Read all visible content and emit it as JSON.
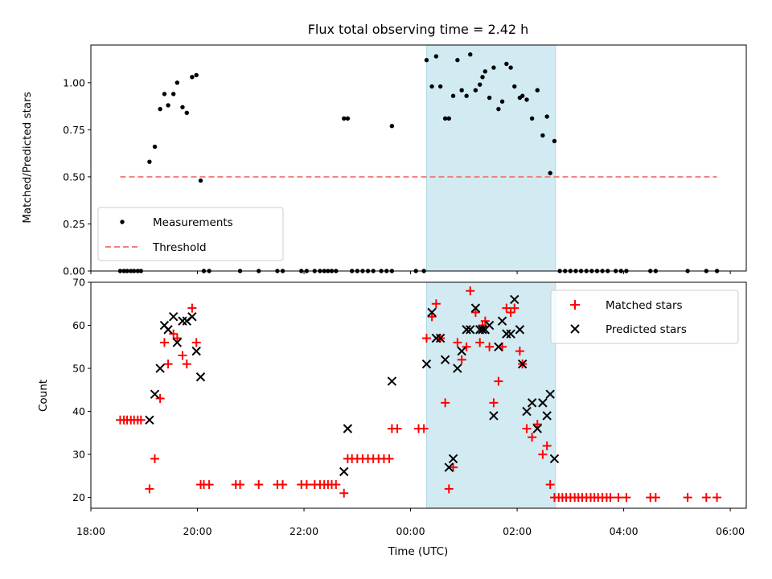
{
  "chart_data": {
    "type": "scatter",
    "title": "Flux total observing time = 2.42 h",
    "xlabel": "Time (UTC)",
    "colors": {
      "measurement": "#000000",
      "threshold": "#f08080",
      "matched": "#ff0000",
      "predicted": "#000000",
      "highlight": "#add8e6"
    },
    "x_axis": {
      "range_hours": [
        18.0,
        30.3
      ],
      "ticks": [
        18,
        20,
        22,
        24,
        26,
        28,
        30
      ],
      "tick_labels": [
        "18:00",
        "20:00",
        "22:00",
        "00:00",
        "02:00",
        "04:00",
        "06:00"
      ]
    },
    "highlight_span_hours": [
      24.3,
      26.72
    ],
    "panels": [
      {
        "ylabel": "Matched/Predicted stars",
        "ylim": [
          0,
          1.2
        ],
        "yticks": [
          0.0,
          0.25,
          0.5,
          0.75,
          1.0
        ],
        "ytick_labels": [
          "0.00",
          "0.25",
          "0.50",
          "0.75",
          "1.00"
        ],
        "legend": {
          "position": "lower-left",
          "entries": [
            "Measurements",
            "Threshold"
          ]
        },
        "threshold": {
          "name": "Threshold",
          "y": 0.5,
          "x_range_hours": [
            18.55,
            29.75
          ]
        },
        "measurements": {
          "name": "Measurements",
          "points": [
            [
              18.55,
              0
            ],
            [
              18.62,
              0
            ],
            [
              18.68,
              0
            ],
            [
              18.75,
              0
            ],
            [
              18.81,
              0
            ],
            [
              18.88,
              0
            ],
            [
              18.94,
              0
            ],
            [
              19.1,
              0.58
            ],
            [
              19.2,
              0.66
            ],
            [
              19.3,
              0.86
            ],
            [
              19.38,
              0.94
            ],
            [
              19.45,
              0.88
            ],
            [
              19.55,
              0.94
            ],
            [
              19.62,
              1.0
            ],
            [
              19.72,
              0.87
            ],
            [
              19.8,
              0.84
            ],
            [
              19.9,
              1.03
            ],
            [
              19.98,
              1.04
            ],
            [
              20.06,
              0.48
            ],
            [
              20.12,
              0
            ],
            [
              20.22,
              0
            ],
            [
              20.8,
              0
            ],
            [
              21.15,
              0
            ],
            [
              21.5,
              0
            ],
            [
              21.6,
              0
            ],
            [
              21.95,
              0
            ],
            [
              22.05,
              0
            ],
            [
              22.2,
              0
            ],
            [
              22.3,
              0
            ],
            [
              22.38,
              0
            ],
            [
              22.45,
              0
            ],
            [
              22.52,
              0
            ],
            [
              22.6,
              0
            ],
            [
              22.75,
              0.81
            ],
            [
              22.82,
              0.81
            ],
            [
              22.9,
              0
            ],
            [
              23.0,
              0
            ],
            [
              23.1,
              0
            ],
            [
              23.2,
              0
            ],
            [
              23.3,
              0
            ],
            [
              23.45,
              0
            ],
            [
              23.55,
              0
            ],
            [
              23.65,
              0
            ],
            [
              23.65,
              0.77
            ],
            [
              24.1,
              0
            ],
            [
              24.25,
              0
            ],
            [
              24.3,
              1.12
            ],
            [
              24.4,
              0.98
            ],
            [
              24.48,
              1.14
            ],
            [
              24.56,
              0.98
            ],
            [
              24.65,
              0.81
            ],
            [
              24.72,
              0.81
            ],
            [
              24.8,
              0.93
            ],
            [
              24.88,
              1.12
            ],
            [
              24.96,
              0.96
            ],
            [
              25.05,
              0.93
            ],
            [
              25.12,
              1.15
            ],
            [
              25.22,
              0.96
            ],
            [
              25.3,
              0.99
            ],
            [
              25.35,
              1.03
            ],
            [
              25.4,
              1.06
            ],
            [
              25.48,
              0.92
            ],
            [
              25.56,
              1.08
            ],
            [
              25.65,
              0.86
            ],
            [
              25.72,
              0.9
            ],
            [
              25.8,
              1.1
            ],
            [
              25.88,
              1.08
            ],
            [
              25.95,
              0.98
            ],
            [
              26.05,
              0.92
            ],
            [
              26.1,
              0.93
            ],
            [
              26.18,
              0.91
            ],
            [
              26.28,
              0.81
            ],
            [
              26.38,
              0.96
            ],
            [
              26.48,
              0.72
            ],
            [
              26.56,
              0.82
            ],
            [
              26.62,
              0.52
            ],
            [
              26.7,
              0.69
            ],
            [
              26.8,
              0
            ],
            [
              26.9,
              0
            ],
            [
              27.0,
              0
            ],
            [
              27.1,
              0
            ],
            [
              27.2,
              0
            ],
            [
              27.3,
              0
            ],
            [
              27.4,
              0
            ],
            [
              27.5,
              0
            ],
            [
              27.6,
              0
            ],
            [
              27.7,
              0
            ],
            [
              27.85,
              0
            ],
            [
              27.95,
              0
            ],
            [
              28.05,
              0
            ],
            [
              28.5,
              0
            ],
            [
              28.6,
              0
            ],
            [
              29.2,
              0
            ],
            [
              29.55,
              0
            ],
            [
              29.75,
              0
            ]
          ]
        }
      },
      {
        "ylabel": "Count",
        "ylim": [
          17.5,
          70
        ],
        "yticks": [
          20,
          30,
          40,
          50,
          60,
          70
        ],
        "ytick_labels": [
          "20",
          "30",
          "40",
          "50",
          "60",
          "70"
        ],
        "legend": {
          "position": "upper-right",
          "entries": [
            "Matched stars",
            "Predicted stars"
          ]
        },
        "series": [
          {
            "name": "Matched stars",
            "marker": "plus",
            "points": [
              [
                18.55,
                38
              ],
              [
                18.62,
                38
              ],
              [
                18.68,
                38
              ],
              [
                18.75,
                38
              ],
              [
                18.81,
                38
              ],
              [
                18.88,
                38
              ],
              [
                18.94,
                38
              ],
              [
                19.1,
                22
              ],
              [
                19.2,
                29
              ],
              [
                19.3,
                43
              ],
              [
                19.38,
                56
              ],
              [
                19.45,
                51
              ],
              [
                19.55,
                58
              ],
              [
                19.62,
                57
              ],
              [
                19.72,
                53
              ],
              [
                19.8,
                51
              ],
              [
                19.9,
                64
              ],
              [
                19.98,
                56
              ],
              [
                20.06,
                23
              ],
              [
                20.12,
                23
              ],
              [
                20.22,
                23
              ],
              [
                20.72,
                23
              ],
              [
                20.8,
                23
              ],
              [
                21.15,
                23
              ],
              [
                21.5,
                23
              ],
              [
                21.6,
                23
              ],
              [
                21.95,
                23
              ],
              [
                22.05,
                23
              ],
              [
                22.2,
                23
              ],
              [
                22.3,
                23
              ],
              [
                22.38,
                23
              ],
              [
                22.45,
                23
              ],
              [
                22.52,
                23
              ],
              [
                22.6,
                23
              ],
              [
                22.75,
                21
              ],
              [
                22.82,
                29
              ],
              [
                22.9,
                29
              ],
              [
                23.0,
                29
              ],
              [
                23.1,
                29
              ],
              [
                23.2,
                29
              ],
              [
                23.3,
                29
              ],
              [
                23.4,
                29
              ],
              [
                23.5,
                29
              ],
              [
                23.6,
                29
              ],
              [
                23.65,
                36
              ],
              [
                23.75,
                36
              ],
              [
                24.15,
                36
              ],
              [
                24.25,
                36
              ],
              [
                24.3,
                57
              ],
              [
                24.4,
                62
              ],
              [
                24.48,
                65
              ],
              [
                24.56,
                57
              ],
              [
                24.65,
                42
              ],
              [
                24.72,
                22
              ],
              [
                24.8,
                27
              ],
              [
                24.88,
                56
              ],
              [
                24.96,
                52
              ],
              [
                25.05,
                55
              ],
              [
                25.12,
                68
              ],
              [
                25.22,
                63
              ],
              [
                25.3,
                56
              ],
              [
                25.35,
                60
              ],
              [
                25.4,
                61
              ],
              [
                25.48,
                55
              ],
              [
                25.56,
                42
              ],
              [
                25.65,
                47
              ],
              [
                25.72,
                55
              ],
              [
                25.8,
                64
              ],
              [
                25.88,
                63
              ],
              [
                25.95,
                64
              ],
              [
                26.05,
                54
              ],
              [
                26.1,
                51
              ],
              [
                26.18,
                36
              ],
              [
                26.28,
                34
              ],
              [
                26.38,
                37
              ],
              [
                26.48,
                30
              ],
              [
                26.56,
                32
              ],
              [
                26.62,
                23
              ],
              [
                26.7,
                20
              ],
              [
                26.78,
                20
              ],
              [
                26.85,
                20
              ],
              [
                26.92,
                20
              ],
              [
                27.0,
                20
              ],
              [
                27.08,
                20
              ],
              [
                27.15,
                20
              ],
              [
                27.22,
                20
              ],
              [
                27.3,
                20
              ],
              [
                27.38,
                20
              ],
              [
                27.45,
                20
              ],
              [
                27.52,
                20
              ],
              [
                27.6,
                20
              ],
              [
                27.68,
                20
              ],
              [
                27.75,
                20
              ],
              [
                27.9,
                20
              ],
              [
                28.05,
                20
              ],
              [
                28.5,
                20
              ],
              [
                28.6,
                20
              ],
              [
                29.2,
                20
              ],
              [
                29.55,
                20
              ],
              [
                29.75,
                20
              ]
            ]
          },
          {
            "name": "Predicted stars",
            "marker": "cross",
            "points": [
              [
                19.1,
                38
              ],
              [
                19.2,
                44
              ],
              [
                19.3,
                50
              ],
              [
                19.38,
                60
              ],
              [
                19.45,
                59
              ],
              [
                19.55,
                62
              ],
              [
                19.62,
                56
              ],
              [
                19.72,
                61
              ],
              [
                19.8,
                61
              ],
              [
                19.9,
                62
              ],
              [
                19.98,
                54
              ],
              [
                20.06,
                48
              ],
              [
                22.75,
                26
              ],
              [
                22.82,
                36
              ],
              [
                23.65,
                47
              ],
              [
                24.3,
                51
              ],
              [
                24.4,
                63
              ],
              [
                24.48,
                57
              ],
              [
                24.56,
                57
              ],
              [
                24.65,
                52
              ],
              [
                24.72,
                27
              ],
              [
                24.8,
                29
              ],
              [
                24.88,
                50
              ],
              [
                24.96,
                54
              ],
              [
                25.05,
                59
              ],
              [
                25.12,
                59
              ],
              [
                25.22,
                64
              ],
              [
                25.3,
                59
              ],
              [
                25.35,
                59
              ],
              [
                25.4,
                59
              ],
              [
                25.48,
                60
              ],
              [
                25.56,
                39
              ],
              [
                25.65,
                55
              ],
              [
                25.72,
                61
              ],
              [
                25.8,
                58
              ],
              [
                25.88,
                58
              ],
              [
                25.95,
                66
              ],
              [
                26.05,
                59
              ],
              [
                26.1,
                51
              ],
              [
                26.18,
                40
              ],
              [
                26.28,
                42
              ],
              [
                26.38,
                36
              ],
              [
                26.48,
                42
              ],
              [
                26.56,
                39
              ],
              [
                26.62,
                44
              ],
              [
                26.7,
                29
              ]
            ]
          }
        ]
      }
    ]
  }
}
